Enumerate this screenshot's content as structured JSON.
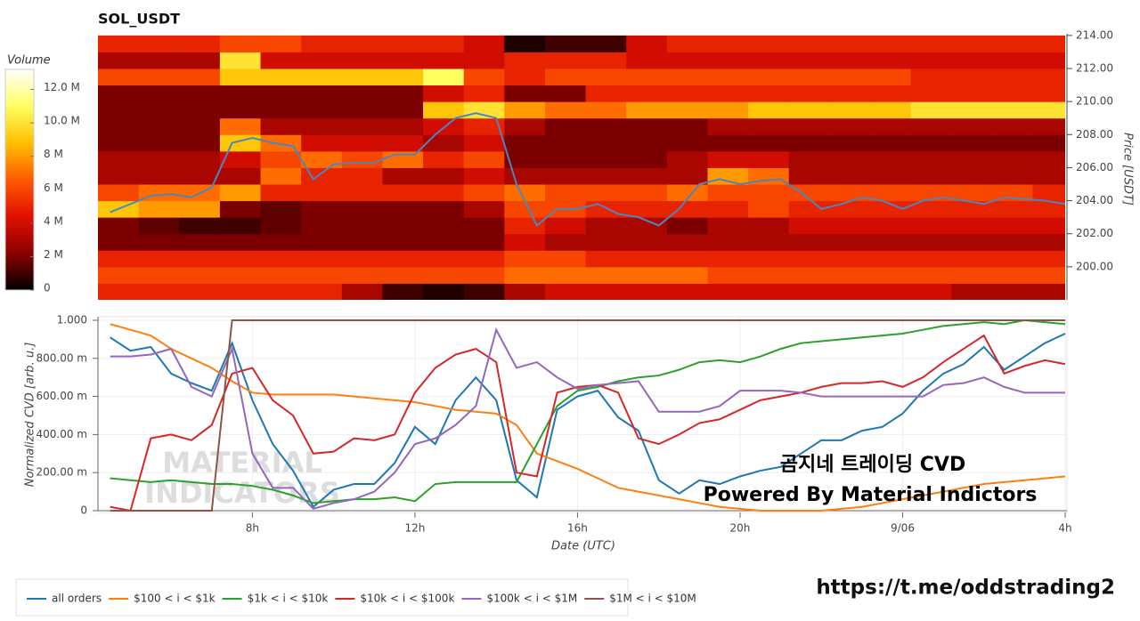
{
  "chart_data": [
    {
      "type": "heatmap",
      "title": "SOL_USDT",
      "ylabel": "Price [USDT]",
      "xlim": [
        4.2,
        28.0
      ],
      "ylim": [
        198,
        214.1
      ],
      "yticks": [
        {
          "value": 200,
          "label": "200.00"
        },
        {
          "value": 202,
          "label": "202.00"
        },
        {
          "value": 204,
          "label": "204.00"
        },
        {
          "value": 206,
          "label": "206.00"
        },
        {
          "value": 208,
          "label": "208.00"
        },
        {
          "value": 210,
          "label": "210.00"
        },
        {
          "value": 212,
          "label": "212.00"
        },
        {
          "value": 214,
          "label": "214.00"
        }
      ],
      "x_edges": [
        4.2,
        5.2,
        6.2,
        7.2,
        8.2,
        9.2,
        10.2,
        11.2,
        12.2,
        13.2,
        14.2,
        15.2,
        16.2,
        17.2,
        18.2,
        19.2,
        20.2,
        21.2,
        22.2,
        23.2,
        24.2,
        25.2,
        26.2,
        27.2,
        28.0
      ],
      "y_edges": [
        198,
        199,
        200,
        201,
        202,
        203,
        204,
        205,
        206,
        207,
        208,
        209,
        210,
        211,
        212,
        213,
        214
      ],
      "z": [
        [
          5000000.0,
          5000000.0,
          5000000.0,
          5000000.0,
          5000000.0,
          5000000.0,
          3000000.0,
          1000000.0,
          500000.0,
          1000000.0,
          3000000.0,
          4000000.0,
          4000000.0,
          4000000.0,
          4000000.0,
          4000000.0,
          4000000.0,
          4000000.0,
          4000000.0,
          4000000.0,
          4000000.0,
          3000000.0,
          3000000.0,
          3000000.0
        ],
        [
          6000000.0,
          6000000.0,
          6000000.0,
          6000000.0,
          6000000.0,
          6000000.0,
          6000000.0,
          6000000.0,
          6000000.0,
          6000000.0,
          7000000.0,
          7000000.0,
          7000000.0,
          7000000.0,
          7000000.0,
          6000000.0,
          6000000.0,
          6000000.0,
          6000000.0,
          6000000.0,
          6000000.0,
          6000000.0,
          6000000.0,
          6000000.0
        ],
        [
          5000000.0,
          5000000.0,
          5000000.0,
          5000000.0,
          5000000.0,
          5000000.0,
          5000000.0,
          5000000.0,
          5000000.0,
          5000000.0,
          6000000.0,
          6000000.0,
          5000000.0,
          5000000.0,
          5000000.0,
          5000000.0,
          5000000.0,
          5000000.0,
          5000000.0,
          5000000.0,
          5000000.0,
          5000000.0,
          5000000.0,
          5000000.0
        ],
        [
          2000000.0,
          2000000.0,
          2000000.0,
          2000000.0,
          2000000.0,
          2000000.0,
          2000000.0,
          2000000.0,
          2000000.0,
          2000000.0,
          4000000.0,
          3000000.0,
          3000000.0,
          3000000.0,
          3000000.0,
          3000000.0,
          3000000.0,
          3000000.0,
          3000000.0,
          3000000.0,
          3000000.0,
          3000000.0,
          3000000.0,
          3000000.0
        ],
        [
          2000000.0,
          1500000.0,
          1000000.0,
          1000000.0,
          1500000.0,
          2000000.0,
          2000000.0,
          2000000.0,
          2000000.0,
          2000000.0,
          5000000.0,
          4000000.0,
          3000000.0,
          3000000.0,
          2000000.0,
          3000000.0,
          3000000.0,
          4000000.0,
          4000000.0,
          4000000.0,
          4000000.0,
          4000000.0,
          4000000.0,
          4000000.0
        ],
        [
          9000000.0,
          8000000.0,
          8000000.0,
          2000000.0,
          1500000.0,
          2000000.0,
          2000000.0,
          2000000.0,
          2000000.0,
          3000000.0,
          6000000.0,
          6000000.0,
          5000000.0,
          5000000.0,
          5000000.0,
          5000000.0,
          6000000.0,
          5000000.0,
          5000000.0,
          5000000.0,
          5000000.0,
          5000000.0,
          5000000.0,
          5000000.0
        ],
        [
          6000000.0,
          7000000.0,
          7000000.0,
          8000000.0,
          5000000.0,
          5000000.0,
          5000000.0,
          5000000.0,
          5000000.0,
          6000000.0,
          7000000.0,
          6000000.0,
          6000000.0,
          6000000.0,
          7000000.0,
          6000000.0,
          6000000.0,
          6000000.0,
          6000000.0,
          6000000.0,
          6000000.0,
          6000000.0,
          6000000.0,
          5000000.0
        ],
        [
          3000000.0,
          3000000.0,
          3000000.0,
          3000000.0,
          7000000.0,
          5000000.0,
          5000000.0,
          3000000.0,
          3000000.0,
          4000000.0,
          3000000.0,
          3000000.0,
          3000000.0,
          3000000.0,
          3000000.0,
          8000000.0,
          7000000.0,
          3000000.0,
          3000000.0,
          3000000.0,
          3000000.0,
          3000000.0,
          3000000.0,
          3000000.0
        ],
        [
          3000000.0,
          3000000.0,
          3000000.0,
          4000000.0,
          6000000.0,
          7000000.0,
          6000000.0,
          7000000.0,
          5000000.0,
          6000000.0,
          2000000.0,
          2000000.0,
          2000000.0,
          2000000.0,
          3000000.0,
          4000000.0,
          4000000.0,
          3000000.0,
          3000000.0,
          3000000.0,
          3000000.0,
          3000000.0,
          3000000.0,
          3000000.0
        ],
        [
          2000000.0,
          2000000.0,
          2000000.0,
          9000000.0,
          7000000.0,
          4000000.0,
          4000000.0,
          4000000.0,
          3000000.0,
          4000000.0,
          2000000.0,
          2000000.0,
          2000000.0,
          2000000.0,
          2000000.0,
          2000000.0,
          2000000.0,
          2000000.0,
          2000000.0,
          2000000.0,
          2000000.0,
          2000000.0,
          2000000.0,
          2000000.0
        ],
        [
          2000000.0,
          2000000.0,
          2000000.0,
          7000000.0,
          3000000.0,
          3000000.0,
          3000000.0,
          3000000.0,
          4000000.0,
          5000000.0,
          3000000.0,
          2000000.0,
          2000000.0,
          2000000.0,
          2000000.0,
          3000000.0,
          3000000.0,
          3000000.0,
          3000000.0,
          3000000.0,
          3000000.0,
          3000000.0,
          3000000.0,
          3000000.0
        ],
        [
          2000000.0,
          2000000.0,
          2000000.0,
          2000000.0,
          2000000.0,
          2000000.0,
          2000000.0,
          2000000.0,
          9000000.0,
          10000000.0,
          8000000.0,
          7000000.0,
          7000000.0,
          8000000.0,
          8000000.0,
          8000000.0,
          9000000.0,
          9000000.0,
          9000000.0,
          9000000.0,
          10000000.0,
          10000000.0,
          10000000.0,
          10000000.0
        ],
        [
          2000000.0,
          2000000.0,
          2000000.0,
          2000000.0,
          2000000.0,
          2000000.0,
          2000000.0,
          2000000.0,
          4000000.0,
          5000000.0,
          2000000.0,
          2000000.0,
          5000000.0,
          5000000.0,
          5000000.0,
          5000000.0,
          5000000.0,
          5000000.0,
          5000000.0,
          5000000.0,
          5000000.0,
          5000000.0,
          5000000.0,
          5000000.0
        ],
        [
          6000000.0,
          6000000.0,
          6000000.0,
          9000000.0,
          9000000.0,
          9000000.0,
          9000000.0,
          9000000.0,
          11000000.0,
          6000000.0,
          5000000.0,
          6000000.0,
          6000000.0,
          6000000.0,
          6000000.0,
          6000000.0,
          6000000.0,
          6000000.0,
          6000000.0,
          6000000.0,
          5000000.0,
          5000000.0,
          5000000.0,
          5000000.0
        ],
        [
          3000000.0,
          3000000.0,
          3000000.0,
          10000000.0,
          4000000.0,
          4000000.0,
          4000000.0,
          4000000.0,
          4000000.0,
          4000000.0,
          5000000.0,
          5000000.0,
          5000000.0,
          4000000.0,
          4000000.0,
          4000000.0,
          4000000.0,
          4000000.0,
          4000000.0,
          4000000.0,
          4000000.0,
          4000000.0,
          4000000.0,
          4000000.0
        ],
        [
          5000000.0,
          5000000.0,
          5000000.0,
          6000000.0,
          6000000.0,
          5000000.0,
          5000000.0,
          5000000.0,
          5000000.0,
          4000000.0,
          500000.0,
          1000000.0,
          1000000.0,
          4000000.0,
          5000000.0,
          5000000.0,
          5000000.0,
          5000000.0,
          5000000.0,
          5000000.0,
          5000000.0,
          5000000.0,
          5000000.0,
          5000000.0
        ]
      ],
      "colorscale": [
        "#000000",
        "#8a0000",
        "#e01000",
        "#ff5a00",
        "#ffc000",
        "#ffff60",
        "#ffffff"
      ],
      "colorbar": {
        "label": "Volume",
        "lim": [
          0,
          13200000
        ],
        "ticks": [
          0,
          {
            "value": 2000000,
            "label": "2 M"
          },
          {
            "value": 4000000,
            "label": "4 M"
          },
          {
            "value": 6000000,
            "label": "6 M"
          },
          {
            "value": 8000000,
            "label": "8 M"
          },
          {
            "value": 10000000,
            "label": "10.0 M"
          },
          {
            "value": 12000000,
            "label": "12.0 M"
          }
        ]
      },
      "price_line": {
        "color": "#4a86c0",
        "x": [
          4.5,
          5,
          5.5,
          6,
          6.5,
          7,
          7.5,
          8,
          8.5,
          9,
          9.5,
          10,
          10.5,
          11,
          11.5,
          12,
          12.5,
          13,
          13.5,
          14,
          14.5,
          15,
          15.5,
          16,
          16.5,
          17,
          17.5,
          18,
          18.5,
          19,
          19.5,
          20,
          20.5,
          21,
          21.5,
          22,
          22.5,
          23,
          23.5,
          24,
          24.5,
          25,
          25.5,
          26,
          26.5,
          27,
          27.5,
          28
        ],
        "values": [
          203.3,
          203.8,
          204.3,
          204.4,
          204.2,
          204.8,
          207.5,
          207.8,
          207.5,
          207.3,
          205.3,
          206.2,
          206.3,
          206.3,
          206.8,
          206.8,
          208.0,
          209.0,
          209.3,
          209.0,
          205.0,
          202.5,
          203.5,
          203.5,
          203.8,
          203.2,
          203.0,
          202.5,
          203.5,
          205.0,
          205.3,
          205.0,
          205.2,
          205.3,
          204.5,
          203.5,
          203.8,
          204.2,
          204.0,
          203.5,
          204.0,
          204.2,
          204.0,
          203.8,
          204.2,
          204.1,
          204.0,
          203.8
        ]
      }
    },
    {
      "type": "line",
      "xlabel": "Date (UTC)",
      "ylabel": "Normalized CVD [arb. u.]",
      "grid": true,
      "xlim": [
        4.2,
        28.0
      ],
      "xticks": [
        {
          "value": 8,
          "label": "8h"
        },
        {
          "value": 12,
          "label": "12h"
        },
        {
          "value": 16,
          "label": "16h"
        },
        {
          "value": 20,
          "label": "20h"
        },
        {
          "value": 24,
          "label": "9/06"
        },
        {
          "value": 28,
          "label": "4h"
        }
      ],
      "ylim": [
        0,
        1
      ],
      "yticks": [
        0,
        {
          "value": 0.2,
          "label": "200.00 m"
        },
        {
          "value": 0.4,
          "label": "400.00 m"
        },
        {
          "value": 0.6,
          "label": "600.00 m"
        },
        {
          "value": 0.8,
          "label": "800.00 m"
        },
        {
          "value": 1,
          "label": "1.000"
        }
      ],
      "watermark": [
        "MATERIAL",
        "INDICATORS"
      ],
      "annotations": [
        "곰지네 트레이딩 CVD",
        "Powered By Material Indictors"
      ],
      "x": [
        4.5,
        5,
        5.5,
        6,
        6.5,
        7,
        7.5,
        8,
        8.5,
        9,
        9.5,
        10,
        10.5,
        11,
        11.5,
        12,
        12.5,
        13,
        13.5,
        14,
        14.5,
        15,
        15.5,
        16,
        16.5,
        17,
        17.5,
        18,
        18.5,
        19,
        19.5,
        20,
        20.5,
        21,
        21.5,
        22,
        22.5,
        23,
        23.5,
        24,
        24.5,
        25,
        25.5,
        26,
        26.5,
        27,
        27.5,
        28
      ],
      "series": [
        {
          "name": "all orders",
          "color": "#1f77b4",
          "values": [
            0.91,
            0.84,
            0.86,
            0.72,
            0.67,
            0.63,
            0.88,
            0.58,
            0.35,
            0.21,
            0.02,
            0.11,
            0.14,
            0.14,
            0.25,
            0.44,
            0.35,
            0.58,
            0.7,
            0.58,
            0.16,
            0.07,
            0.53,
            0.6,
            0.63,
            0.49,
            0.42,
            0.16,
            0.09,
            0.16,
            0.14,
            0.18,
            0.21,
            0.23,
            0.3,
            0.37,
            0.37,
            0.42,
            0.44,
            0.51,
            0.63,
            0.72,
            0.77,
            0.86,
            0.74,
            0.81,
            0.88,
            0.93
          ]
        },
        {
          "name": "$100 < i < $1k",
          "color": "#ff7f0e",
          "values": [
            0.98,
            0.95,
            0.92,
            0.85,
            0.8,
            0.75,
            0.68,
            0.62,
            0.61,
            0.61,
            0.61,
            0.61,
            0.6,
            0.59,
            0.58,
            0.57,
            0.55,
            0.53,
            0.52,
            0.51,
            0.45,
            0.3,
            0.26,
            0.22,
            0.17,
            0.12,
            0.1,
            0.08,
            0.06,
            0.04,
            0.02,
            0.01,
            0,
            0,
            0,
            0,
            0.01,
            0.02,
            0.04,
            0.06,
            0.08,
            0.1,
            0.12,
            0.14,
            0.15,
            0.16,
            0.17,
            0.18
          ]
        },
        {
          "name": "$1k < i < $10k",
          "color": "#2ca02c",
          "values": [
            0.17,
            0.16,
            0.15,
            0.16,
            0.15,
            0.14,
            0.14,
            0.13,
            0.11,
            0.08,
            0.04,
            0.05,
            0.06,
            0.06,
            0.07,
            0.05,
            0.14,
            0.15,
            0.15,
            0.15,
            0.15,
            0.35,
            0.55,
            0.63,
            0.65,
            0.68,
            0.7,
            0.71,
            0.74,
            0.78,
            0.79,
            0.78,
            0.81,
            0.85,
            0.88,
            0.89,
            0.9,
            0.91,
            0.92,
            0.93,
            0.95,
            0.97,
            0.98,
            0.99,
            0.98,
            1,
            0.99,
            0.98
          ]
        },
        {
          "name": "$10k < i < $100k",
          "color": "#d62728",
          "values": [
            0.02,
            0,
            0.38,
            0.4,
            0.37,
            0.45,
            0.72,
            0.75,
            0.58,
            0.5,
            0.3,
            0.31,
            0.38,
            0.37,
            0.4,
            0.62,
            0.75,
            0.82,
            0.85,
            0.78,
            0.2,
            0.18,
            0.62,
            0.65,
            0.66,
            0.62,
            0.38,
            0.35,
            0.4,
            0.46,
            0.48,
            0.53,
            0.58,
            0.6,
            0.62,
            0.65,
            0.67,
            0.67,
            0.68,
            0.65,
            0.7,
            0.78,
            0.85,
            0.92,
            0.72,
            0.76,
            0.79,
            0.77
          ]
        },
        {
          "name": "$100k < i < $1M",
          "color": "#9467bd",
          "values": [
            0.81,
            0.81,
            0.82,
            0.85,
            0.65,
            0.6,
            0.85,
            0.3,
            0.12,
            0.12,
            0.01,
            0.04,
            0.06,
            0.1,
            0.2,
            0.35,
            0.38,
            0.45,
            0.55,
            0.95,
            0.75,
            0.78,
            0.7,
            0.64,
            0.66,
            0.67,
            0.68,
            0.52,
            0.52,
            0.52,
            0.55,
            0.63,
            0.63,
            0.63,
            0.62,
            0.6,
            0.6,
            0.6,
            0.6,
            0.6,
            0.6,
            0.66,
            0.67,
            0.7,
            0.65,
            0.62,
            0.62,
            0.62
          ]
        },
        {
          "name": "$1M < i < $10M",
          "color": "#8c564b",
          "values": [
            0,
            0,
            0,
            0,
            0,
            0,
            1,
            1,
            1,
            1,
            1,
            1,
            1,
            1,
            1,
            1,
            1,
            1,
            1,
            1,
            1,
            1,
            1,
            1,
            1,
            1,
            1,
            1,
            1,
            1,
            1,
            1,
            1,
            1,
            1,
            1,
            1,
            1,
            1,
            1,
            1,
            1,
            1,
            1,
            1,
            1,
            1,
            1
          ]
        }
      ]
    }
  ],
  "link": "https://t.me/oddstrading2"
}
